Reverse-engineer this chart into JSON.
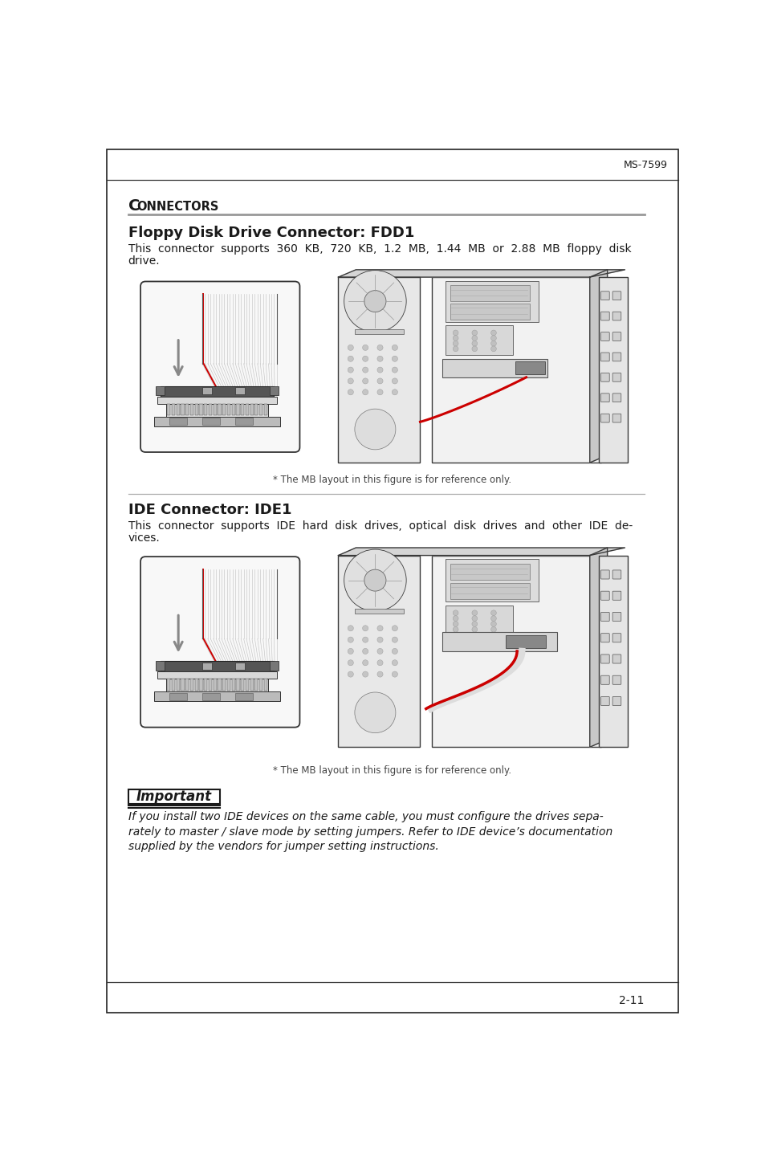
{
  "page_number": "2-11",
  "header_text": "MS-7599",
  "section_title_big": "C",
  "section_title_small": "ONNECTORS",
  "fdd_title": "Floppy Disk Drive Connector: FDD1",
  "fdd_body_line1": "This  connector  supports  360  KB,  720  KB,  1.2  MB,  1.44  MB  or  2.88  MB  floppy  disk",
  "fdd_body_line2": "drive.",
  "fdd_caption": "* The MB layout in this figure is for reference only.",
  "ide_title": "IDE Connector: IDE1",
  "ide_body_line1": "This  connector  supports  IDE  hard  disk  drives,  optical  disk  drives  and  other  IDE  de-",
  "ide_body_line2": "vices.",
  "ide_caption": "* The MB layout in this figure is for reference only.",
  "important_title": "Important",
  "imp_line1": "If you install two IDE devices on the same cable, you must configure the drives sepa-",
  "imp_line2": "rately to master / slave mode by setting jumpers. Refer to IDE device’s documentation",
  "imp_line3": "supplied by the vendors for jumper setting instructions.",
  "bg_color": "#ffffff",
  "text_color": "#1a1a1a",
  "lc": "#3a3a3a",
  "lc_light": "#888888",
  "red": "#cc0000",
  "gray_fill": "#e8e8e8",
  "gray_mid": "#cccccc",
  "gray_dark": "#888888",
  "gray_line": "#aaaaaa"
}
